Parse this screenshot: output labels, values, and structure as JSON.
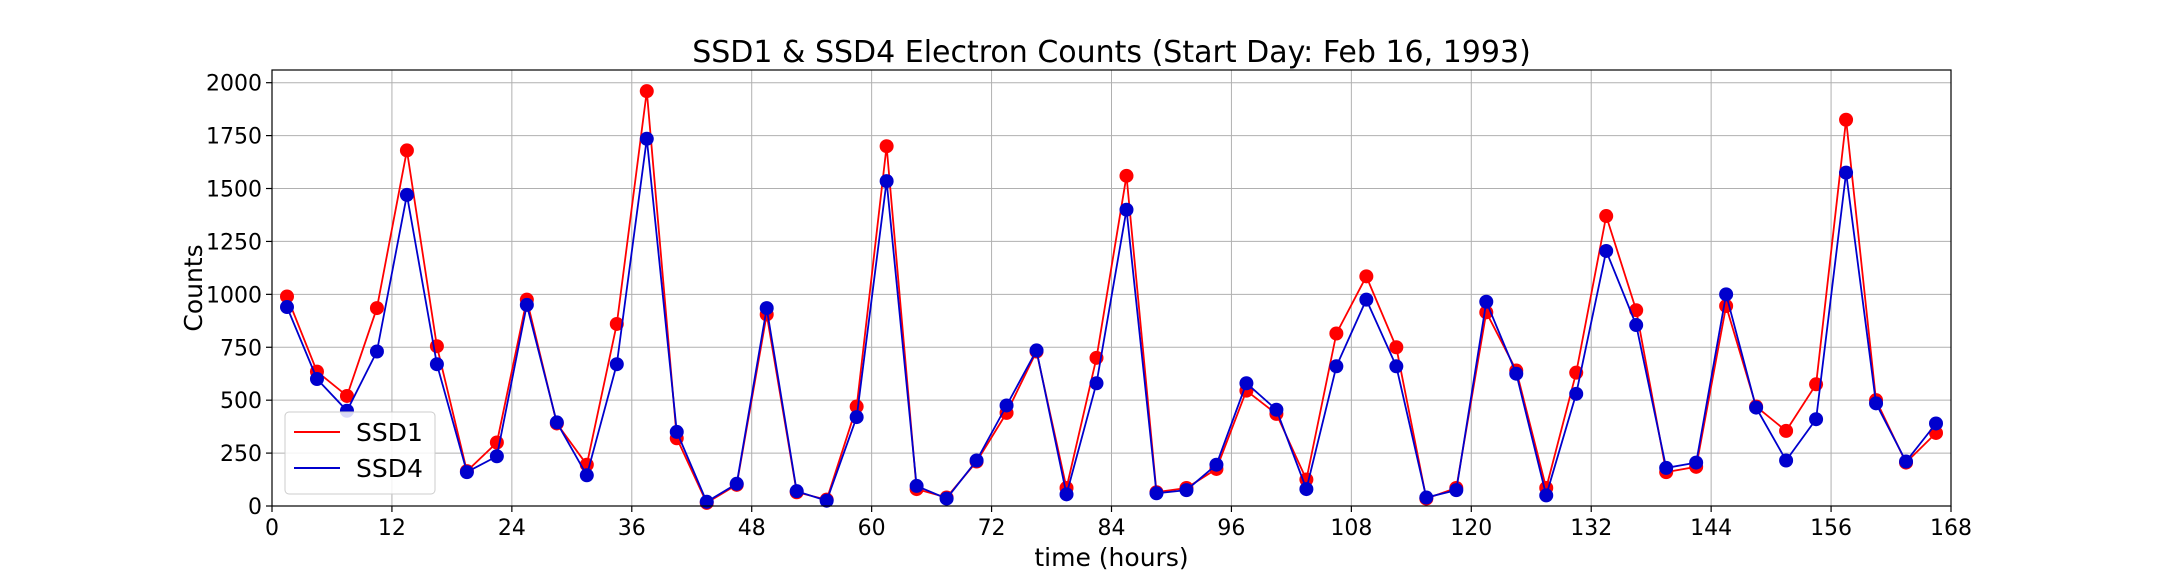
{
  "chart_data": {
    "type": "line",
    "title": "SSD1 & SSD4 Electron Counts (Start Day: Feb 16, 1993)",
    "xlabel": "time (hours)",
    "ylabel": "Counts",
    "xlim": [
      0,
      168
    ],
    "ylim": [
      0,
      2060
    ],
    "xticks": [
      0,
      12,
      24,
      36,
      48,
      60,
      72,
      84,
      96,
      108,
      120,
      132,
      144,
      156,
      168
    ],
    "yticks": [
      0,
      250,
      500,
      750,
      1000,
      1250,
      1500,
      1750,
      2000
    ],
    "grid": true,
    "legend_position": "lower-left",
    "x": [
      1.5,
      4.5,
      7.5,
      10.5,
      13.5,
      16.5,
      19.5,
      22.5,
      25.5,
      28.5,
      31.5,
      34.5,
      37.5,
      40.5,
      43.5,
      46.5,
      49.5,
      52.5,
      55.5,
      58.5,
      61.5,
      64.5,
      67.5,
      70.5,
      73.5,
      76.5,
      79.5,
      82.5,
      85.5,
      88.5,
      91.5,
      94.5,
      97.5,
      100.5,
      103.5,
      106.5,
      109.5,
      112.5,
      115.5,
      118.5,
      121.5,
      124.5,
      127.5,
      130.5,
      133.5,
      136.5,
      139.5,
      142.5,
      145.5,
      148.5,
      151.5,
      154.5,
      157.5,
      160.5,
      163.5,
      166.5
    ],
    "series": [
      {
        "name": "SSD1",
        "color": "#ff0000",
        "values": [
          990,
          635,
          520,
          935,
          1680,
          755,
          165,
          300,
          975,
          390,
          195,
          860,
          1960,
          320,
          15,
          100,
          905,
          65,
          30,
          470,
          1700,
          80,
          40,
          210,
          440,
          730,
          85,
          700,
          1560,
          65,
          85,
          175,
          545,
          435,
          125,
          815,
          1085,
          750,
          35,
          85,
          915,
          640,
          85,
          630,
          1370,
          925,
          160,
          185,
          945,
          470,
          355,
          575,
          1825,
          500,
          205,
          345
        ]
      },
      {
        "name": "SSD4",
        "color": "#0000cd",
        "values": [
          940,
          600,
          450,
          730,
          1470,
          670,
          160,
          235,
          950,
          395,
          145,
          670,
          1735,
          350,
          20,
          105,
          935,
          70,
          25,
          420,
          1535,
          95,
          35,
          215,
          475,
          735,
          55,
          580,
          1400,
          60,
          75,
          195,
          580,
          455,
          80,
          660,
          975,
          660,
          40,
          75,
          965,
          625,
          50,
          530,
          1205,
          855,
          180,
          205,
          1000,
          465,
          215,
          410,
          1575,
          485,
          210,
          390
        ]
      }
    ]
  }
}
